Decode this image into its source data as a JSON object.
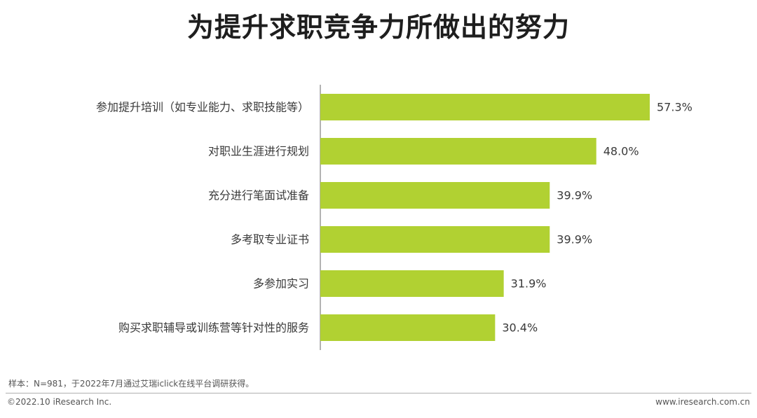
{
  "title": "为提升求职竞争力所做出的努力",
  "note": "样本：N=981，于2022年7月通过艾瑞iclick在线平台调研获得。",
  "footer": {
    "copyright": "©2022.10 iResearch Inc.",
    "website": "www.iresearch.com.cn"
  },
  "colors": {
    "bar": "#b1d132",
    "axis": "#9a9a9a"
  },
  "chart_data": {
    "type": "bar",
    "orientation": "horizontal",
    "categories": [
      "参加提升培训（如专业能力、求职技能等）",
      "对职业生涯进行规划",
      "充分进行笔面试准备",
      "多考取专业证书",
      "多参加实习",
      "购买求职辅导或训练营等针对性的服务"
    ],
    "values": [
      57.3,
      48.0,
      39.9,
      39.9,
      31.9,
      30.4
    ],
    "value_labels": [
      "57.3%",
      "48.0%",
      "39.9%",
      "39.9%",
      "31.9%",
      "30.4%"
    ],
    "unit": "%",
    "xlim": [
      0,
      60
    ],
    "grid": false,
    "legend": "none"
  }
}
